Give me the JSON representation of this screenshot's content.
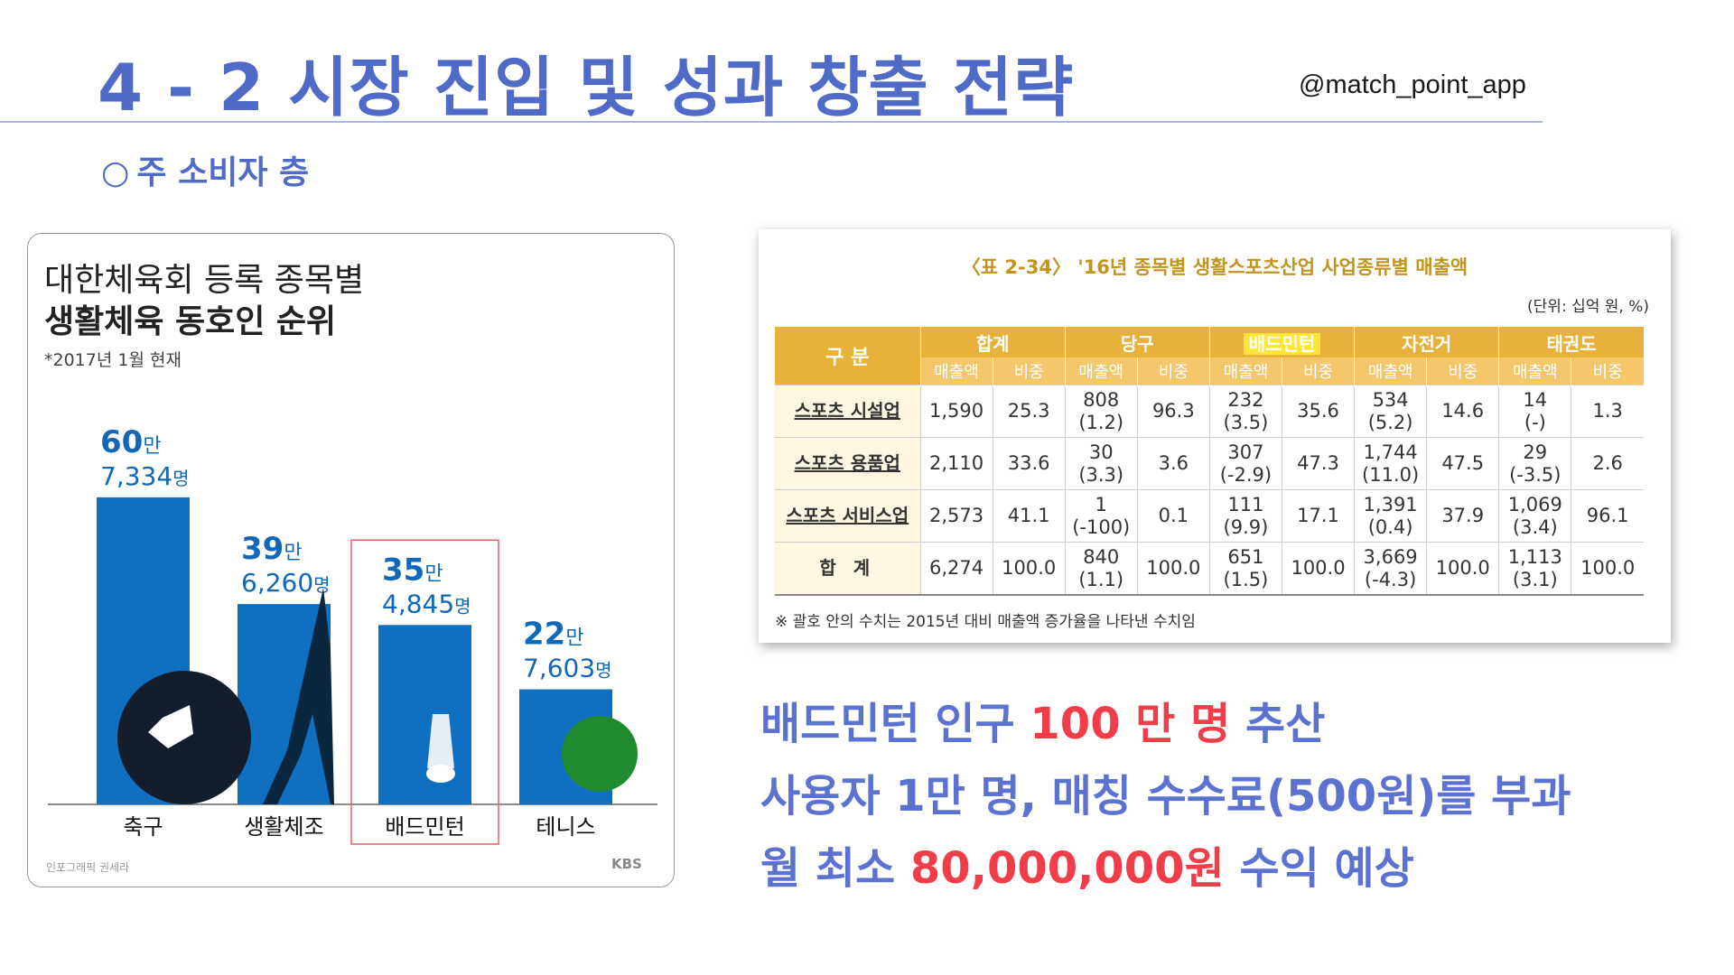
{
  "header": {
    "title": "4 - 2 시장 진입 및 성과 창출 전략",
    "handle": "@match_point_app"
  },
  "section": {
    "bullet": "○",
    "label": "주 소비자 층"
  },
  "infographic": {
    "title_line1": "대한체육회 등록 종목별",
    "title_line2": "생활체육 동호인 순위",
    "as_of": "*2017년 1월 현재",
    "credit": "인포그래픽 권세라",
    "logo": "KBS",
    "highlight_category": "배드민턴",
    "colors": {
      "bar": "#0f6fc0",
      "value_text": "#1268b8",
      "highlight_box": "#e06060"
    }
  },
  "chart_data": {
    "type": "bar",
    "categories": [
      "축구",
      "생활체조",
      "배드민턴",
      "테니스"
    ],
    "values": [
      607334,
      396260,
      354845,
      227603
    ],
    "value_labels": [
      {
        "big": "60",
        "unit1": "만",
        "small": "7,334",
        "unit2": "명"
      },
      {
        "big": "39",
        "unit1": "만",
        "small": "6,260",
        "unit2": "명"
      },
      {
        "big": "35",
        "unit1": "만",
        "small": "4,845",
        "unit2": "명"
      },
      {
        "big": "22",
        "unit1": "만",
        "small": "7,603",
        "unit2": "명"
      }
    ],
    "ylim": [
      0,
      650000
    ]
  },
  "table": {
    "caption": "〈표 2-34〉 '16년 종목별 생활스포츠산업 사업종류별 매출액",
    "unit": "(단위: 십억 원, %)",
    "row_header": "구 분",
    "groups": [
      "합계",
      "당구",
      "배드민턴",
      "자전거",
      "태권도"
    ],
    "subcolumns": [
      "매출액",
      "비중"
    ],
    "rows": [
      {
        "label": "스포츠 시설업",
        "cells": [
          "1,590",
          "25.3",
          "808",
          "(1.2)",
          "96.3",
          "232",
          "(3.5)",
          "35.6",
          "534",
          "(5.2)",
          "14.6",
          "14",
          "(-)",
          "1.3"
        ]
      },
      {
        "label": "스포츠 용품업",
        "cells": [
          "2,110",
          "33.6",
          "30",
          "(3.3)",
          "3.6",
          "307",
          "(-2.9)",
          "47.3",
          "1,744",
          "(11.0)",
          "47.5",
          "29",
          "(-3.5)",
          "2.6"
        ]
      },
      {
        "label": "스포츠 서비스업",
        "cells": [
          "2,573",
          "41.1",
          "1",
          "(-100)",
          "0.1",
          "111",
          "(9.9)",
          "17.1",
          "1,391",
          "(0.4)",
          "37.9",
          "1,069",
          "(3.4)",
          "96.1"
        ]
      },
      {
        "label": "합 계",
        "cells": [
          "6,274",
          "100.0",
          "840",
          "(1.1)",
          "100.0",
          "651",
          "(1.5)",
          "100.0",
          "3,669",
          "(-4.3)",
          "100.0",
          "1,113",
          "(3.1)",
          "100.0"
        ]
      }
    ],
    "note": "※ 괄호 안의 수치는 2015년 대비 매출액 증가율을 나타낸 수치임"
  },
  "statements": {
    "line1": {
      "a": "배드민턴 인구 ",
      "b": "100 만 명",
      "c": " 추산"
    },
    "line2": "사용자 1만 명, 매칭 수수료(500원)를 부과",
    "line3": {
      "a": "월 최소 ",
      "b": "80,000,000원",
      "c": " 수익 예상"
    },
    "accent": "#ef3e4a",
    "primary": "#5b72d0"
  }
}
